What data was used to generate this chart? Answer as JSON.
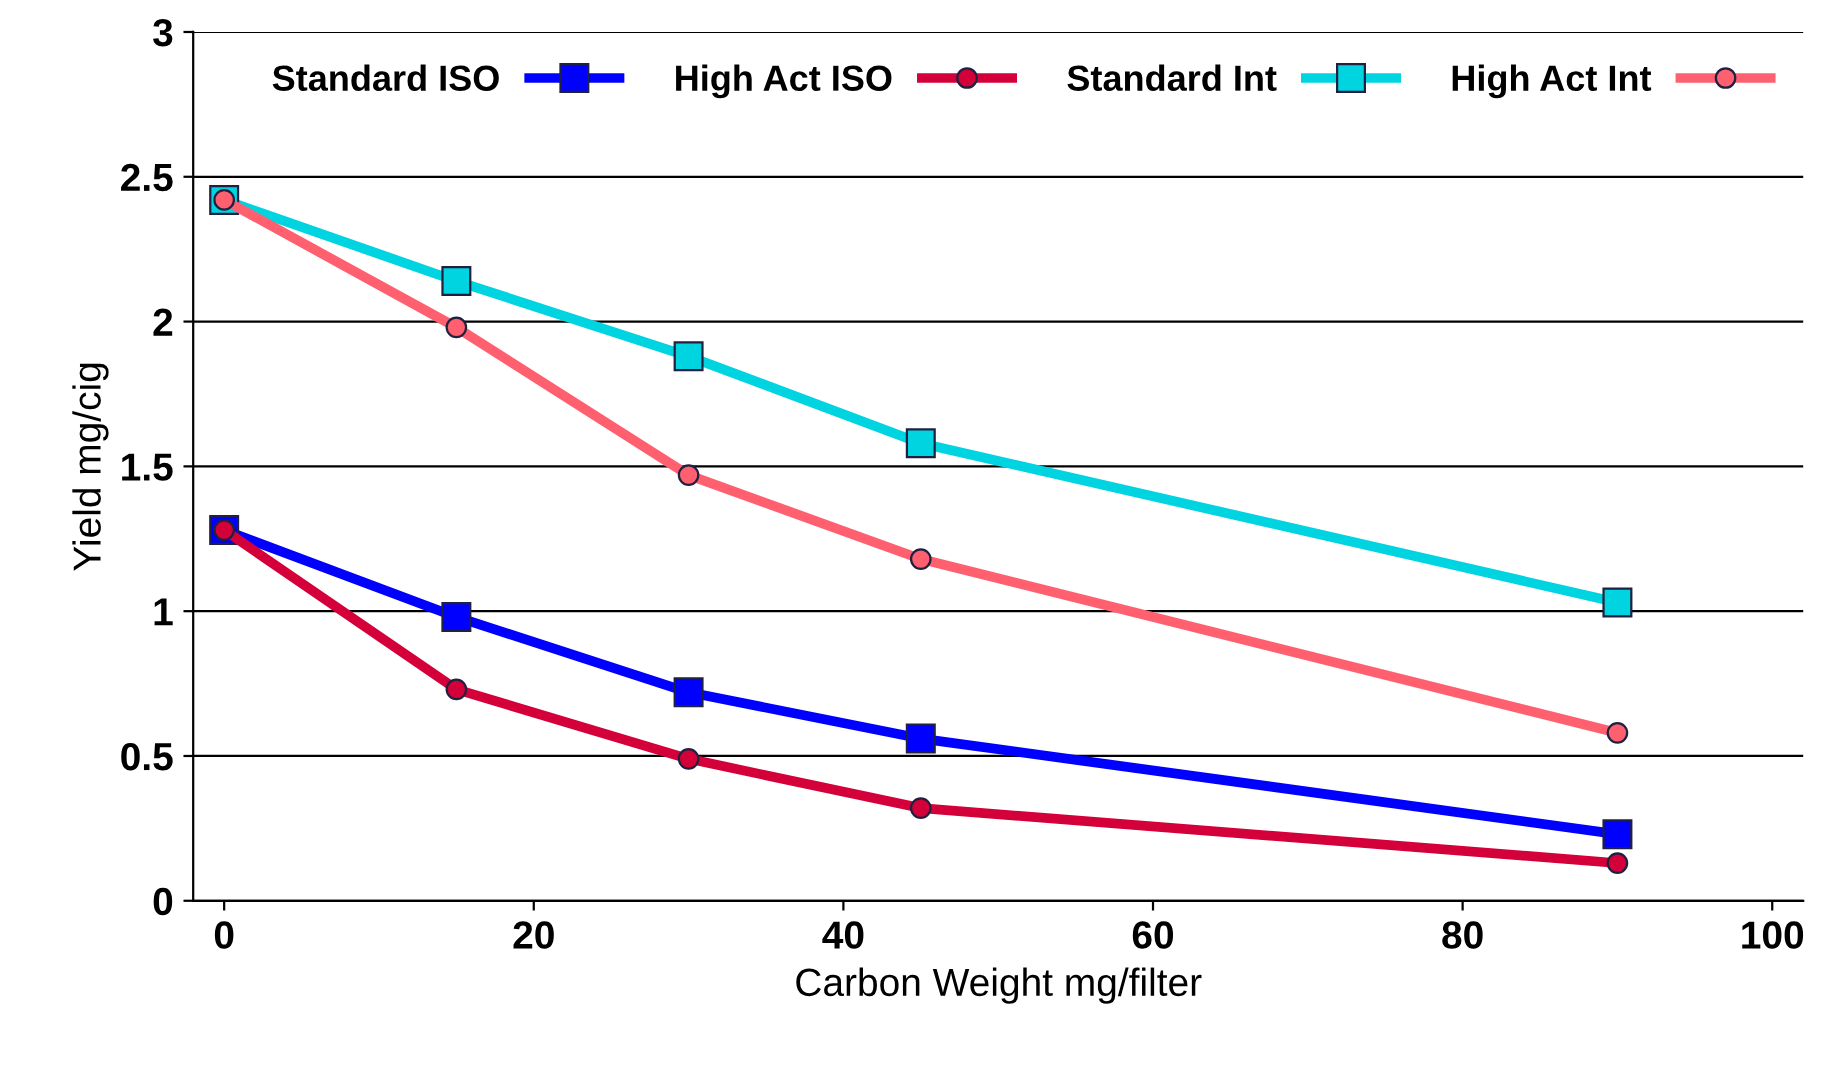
{
  "chart_data": {
    "type": "line",
    "xlabel": "Carbon Weight mg/filter",
    "ylabel": "Yield mg/cig",
    "x": [
      0,
      15,
      30,
      45,
      90
    ],
    "series": [
      {
        "name": "Standard ISO",
        "color": "#0000ff",
        "marker": "square",
        "values": [
          1.28,
          0.98,
          0.72,
          0.56,
          0.23
        ]
      },
      {
        "name": "High Act ISO",
        "color": "#d4003a",
        "marker": "circle",
        "values": [
          1.28,
          0.73,
          0.49,
          0.32,
          0.13
        ]
      },
      {
        "name": "Standard Int",
        "color": "#00d4e0",
        "marker": "square",
        "values": [
          2.42,
          2.14,
          1.88,
          1.58,
          1.03
        ]
      },
      {
        "name": "High Act Int",
        "color": "#ff6070",
        "marker": "circle",
        "values": [
          2.42,
          1.98,
          1.47,
          1.18,
          0.58
        ]
      }
    ],
    "xlim": [
      -2,
      102
    ],
    "xticks": [
      0,
      20,
      40,
      60,
      80,
      100
    ],
    "ylim": [
      0,
      3
    ],
    "yticks": [
      0,
      0.5,
      1,
      1.5,
      2,
      2.5,
      3
    ],
    "grid": "y",
    "legend": "top right",
    "line_style": "solid"
  }
}
